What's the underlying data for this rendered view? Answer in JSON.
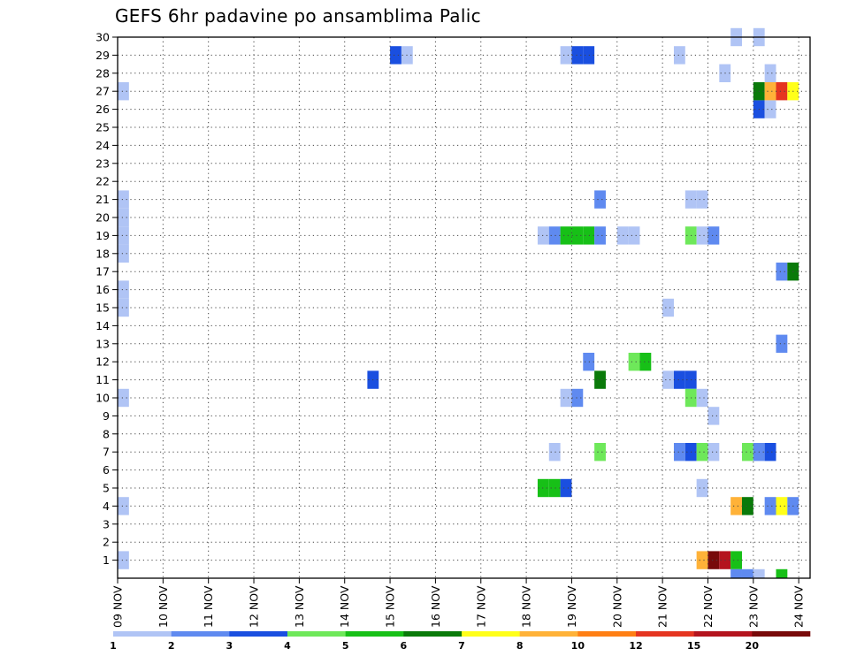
{
  "title": "GEFS 6hr padavine po ansamblima Palic",
  "chart_data": {
    "type": "heatmap",
    "title": "GEFS 6hr padavine po ansamblima Palic",
    "xlabel": "",
    "ylabel": "",
    "x_ticks": [
      "09 NOV",
      "10 NOV",
      "11 NOV",
      "12 NOV",
      "13 NOV",
      "14 NOV",
      "15 NOV",
      "16 NOV",
      "17 NOV",
      "18 NOV",
      "19 NOV",
      "20 NOV",
      "21 NOV",
      "22 NOV",
      "23 NOV",
      "24 NOV"
    ],
    "x_range_days": [
      0,
      15.25
    ],
    "y_ticks": [
      1,
      2,
      3,
      4,
      5,
      6,
      7,
      8,
      9,
      10,
      11,
      12,
      13,
      14,
      15,
      16,
      17,
      18,
      19,
      20,
      21,
      22,
      23,
      24,
      25,
      26,
      27,
      28,
      29,
      30
    ],
    "y_range": [
      0,
      30
    ],
    "grid": true,
    "legend_levels": [
      1,
      2,
      3,
      4,
      5,
      6,
      7,
      8,
      10,
      12,
      15,
      20
    ],
    "legend_colors": [
      "#b0c4f5",
      "#5f8af0",
      "#1a4fe0",
      "#6ee85a",
      "#17c017",
      "#0a7a0a",
      "#ffff1a",
      "#ffb238",
      "#ff7f14",
      "#e53520",
      "#b4141e",
      "#780a0a"
    ],
    "cell_width_days": 0.25,
    "cells": [
      {
        "t": 0.0,
        "m": 1,
        "c": 1
      },
      {
        "t": 0.0,
        "m": 4,
        "c": 1
      },
      {
        "t": 0.0,
        "m": 10,
        "c": 1
      },
      {
        "t": 0.0,
        "m": 15,
        "c": 1
      },
      {
        "t": 0.0,
        "m": 16,
        "c": 1
      },
      {
        "t": 0.0,
        "m": 18,
        "c": 1
      },
      {
        "t": 0.0,
        "m": 19,
        "c": 1
      },
      {
        "t": 0.0,
        "m": 20,
        "c": 1
      },
      {
        "t": 0.0,
        "m": 21,
        "c": 1
      },
      {
        "t": 0.0,
        "m": 27,
        "c": 1
      },
      {
        "t": 5.5,
        "m": 11,
        "c": 3
      },
      {
        "t": 6.0,
        "m": 29,
        "c": 3
      },
      {
        "t": 6.25,
        "m": 29,
        "c": 1
      },
      {
        "t": 9.25,
        "m": 5,
        "c": 5
      },
      {
        "t": 9.5,
        "m": 5,
        "c": 5
      },
      {
        "t": 9.75,
        "m": 5,
        "c": 3
      },
      {
        "t": 9.25,
        "m": 19,
        "c": 1
      },
      {
        "t": 9.5,
        "m": 19,
        "c": 2
      },
      {
        "t": 9.75,
        "m": 19,
        "c": 5
      },
      {
        "t": 10.0,
        "m": 19,
        "c": 5
      },
      {
        "t": 10.25,
        "m": 19,
        "c": 5
      },
      {
        "t": 10.5,
        "m": 19,
        "c": 2
      },
      {
        "t": 9.5,
        "m": 7,
        "c": 1
      },
      {
        "t": 9.75,
        "m": 10,
        "c": 1
      },
      {
        "t": 10.0,
        "m": 10,
        "c": 2
      },
      {
        "t": 9.75,
        "m": 29,
        "c": 1
      },
      {
        "t": 10.0,
        "m": 29,
        "c": 3
      },
      {
        "t": 10.25,
        "m": 29,
        "c": 3
      },
      {
        "t": 10.25,
        "m": 12,
        "c": 2
      },
      {
        "t": 10.5,
        "m": 7,
        "c": 4
      },
      {
        "t": 10.5,
        "m": 11,
        "c": 6
      },
      {
        "t": 10.5,
        "m": 21,
        "c": 2
      },
      {
        "t": 11.0,
        "m": 19,
        "c": 1
      },
      {
        "t": 11.25,
        "m": 19,
        "c": 1
      },
      {
        "t": 11.25,
        "m": 12,
        "c": 4
      },
      {
        "t": 11.5,
        "m": 12,
        "c": 5
      },
      {
        "t": 12.0,
        "m": 11,
        "c": 1
      },
      {
        "t": 12.25,
        "m": 11,
        "c": 3
      },
      {
        "t": 12.5,
        "m": 11,
        "c": 3
      },
      {
        "t": 12.0,
        "m": 15,
        "c": 1
      },
      {
        "t": 12.25,
        "m": 7,
        "c": 2
      },
      {
        "t": 12.5,
        "m": 7,
        "c": 3
      },
      {
        "t": 12.75,
        "m": 7,
        "c": 4
      },
      {
        "t": 13.0,
        "m": 7,
        "c": 1
      },
      {
        "t": 12.25,
        "m": 29,
        "c": 1
      },
      {
        "t": 12.5,
        "m": 10,
        "c": 4
      },
      {
        "t": 12.75,
        "m": 10,
        "c": 1
      },
      {
        "t": 12.5,
        "m": 19,
        "c": 4
      },
      {
        "t": 12.75,
        "m": 19,
        "c": 1
      },
      {
        "t": 13.0,
        "m": 19,
        "c": 2
      },
      {
        "t": 12.5,
        "m": 21,
        "c": 1
      },
      {
        "t": 12.75,
        "m": 21,
        "c": 1
      },
      {
        "t": 12.75,
        "m": 1,
        "c": 8
      },
      {
        "t": 13.0,
        "m": 1,
        "c": 12
      },
      {
        "t": 13.25,
        "m": 1,
        "c": 11
      },
      {
        "t": 13.5,
        "m": 1,
        "c": 5
      },
      {
        "t": 12.75,
        "m": 5,
        "c": 1
      },
      {
        "t": 13.0,
        "m": 9,
        "c": 1
      },
      {
        "t": 13.25,
        "m": 28,
        "c": 1
      },
      {
        "t": 13.5,
        "m": 30,
        "c": 1
      },
      {
        "t": 13.5,
        "m": 4,
        "c": 8
      },
      {
        "t": 13.75,
        "m": 4,
        "c": 6
      },
      {
        "t": 13.5,
        "m": 0,
        "c": 2
      },
      {
        "t": 13.75,
        "m": 0,
        "c": 2
      },
      {
        "t": 14.0,
        "m": 0,
        "c": 1
      },
      {
        "t": 13.75,
        "m": 7,
        "c": 4
      },
      {
        "t": 14.0,
        "m": 7,
        "c": 2
      },
      {
        "t": 14.25,
        "m": 7,
        "c": 3
      },
      {
        "t": 14.0,
        "m": 26,
        "c": 3
      },
      {
        "t": 14.25,
        "m": 26,
        "c": 1
      },
      {
        "t": 14.0,
        "m": 27,
        "c": 6
      },
      {
        "t": 14.25,
        "m": 27,
        "c": 8
      },
      {
        "t": 14.5,
        "m": 27,
        "c": 10
      },
      {
        "t": 14.75,
        "m": 27,
        "c": 7
      },
      {
        "t": 14.0,
        "m": 30,
        "c": 1
      },
      {
        "t": 14.25,
        "m": 4,
        "c": 2
      },
      {
        "t": 14.5,
        "m": 4,
        "c": 7
      },
      {
        "t": 14.75,
        "m": 4,
        "c": 2
      },
      {
        "t": 14.25,
        "m": 28,
        "c": 1
      },
      {
        "t": 14.5,
        "m": 0,
        "c": 5
      },
      {
        "t": 14.5,
        "m": 13,
        "c": 2
      },
      {
        "t": 14.5,
        "m": 17,
        "c": 2
      },
      {
        "t": 14.75,
        "m": 17,
        "c": 6
      }
    ]
  }
}
